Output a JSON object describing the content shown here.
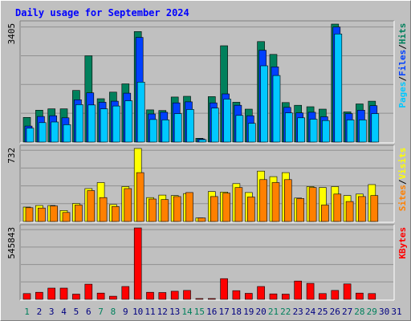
{
  "title": "Daily usage for September 2024",
  "colors": {
    "title": "#0000ff",
    "hits": "#00805c",
    "files": "#0040ff",
    "pages": "#00c8ff",
    "visits": "#ffff00",
    "sites": "#ff8000",
    "kbytes": "#ff0000",
    "weekend_day": "#00805c",
    "weekday": "#000080",
    "panel_bg": "#c0c0c0"
  },
  "chart_data": [
    {
      "type": "bar",
      "title": "Daily usage for September 2024",
      "categories": [
        "1",
        "2",
        "3",
        "4",
        "5",
        "6",
        "7",
        "8",
        "9",
        "10",
        "11",
        "12",
        "13",
        "14",
        "15",
        "16",
        "17",
        "18",
        "19",
        "20",
        "21",
        "22",
        "23",
        "24",
        "25",
        "26",
        "27",
        "28",
        "29",
        "30",
        "31"
      ],
      "weekend_days": [
        "1",
        "7",
        "8",
        "14",
        "15",
        "21",
        "22",
        "28",
        "29"
      ],
      "ylabel_parts": [
        "Pages",
        "/",
        "Files",
        "/",
        "Hits"
      ],
      "max_label": "3405",
      "ylim": [
        0,
        3405
      ],
      "series": [
        {
          "name": "Hits",
          "color": "#00805c",
          "values": [
            710,
            920,
            960,
            960,
            1490,
            2490,
            1250,
            1440,
            1680,
            3190,
            930,
            910,
            1300,
            1320,
            110,
            1310,
            2780,
            1150,
            950,
            2900,
            2530,
            1140,
            1060,
            1020,
            950,
            3405,
            870,
            1100,
            1180,
            0,
            0
          ]
        },
        {
          "name": "Files",
          "color": "#0040ff",
          "values": [
            460,
            740,
            760,
            700,
            1220,
            1420,
            1150,
            1180,
            1410,
            3020,
            810,
            860,
            1130,
            1160,
            90,
            1130,
            1390,
            1060,
            760,
            2650,
            2170,
            1000,
            840,
            860,
            730,
            3320,
            820,
            920,
            1050,
            0,
            0
          ]
        },
        {
          "name": "Pages",
          "color": "#00c8ff",
          "values": [
            400,
            560,
            580,
            500,
            1080,
            1070,
            960,
            1040,
            1190,
            1730,
            650,
            640,
            820,
            940,
            70,
            980,
            1240,
            770,
            540,
            2200,
            1920,
            840,
            700,
            660,
            620,
            3120,
            640,
            640,
            820,
            0,
            0
          ]
        }
      ]
    },
    {
      "type": "bar",
      "ylabel_parts": [
        "Sites",
        "/",
        "Visits"
      ],
      "max_label": "732",
      "ylim": [
        0,
        732
      ],
      "series": [
        {
          "name": "Visits",
          "color": "#ffff00",
          "values": [
            145,
            160,
            160,
            110,
            180,
            330,
            390,
            170,
            350,
            732,
            240,
            265,
            260,
            280,
            35,
            300,
            295,
            380,
            290,
            505,
            450,
            490,
            235,
            350,
            340,
            350,
            260,
            275,
            370,
            0,
            0
          ]
        },
        {
          "name": "Sites",
          "color": "#ff8000",
          "values": [
            138,
            135,
            155,
            90,
            165,
            310,
            240,
            150,
            330,
            490,
            225,
            220,
            250,
            290,
            35,
            250,
            285,
            340,
            245,
            420,
            390,
            420,
            230,
            340,
            165,
            275,
            200,
            250,
            260,
            0,
            0
          ]
        }
      ]
    },
    {
      "type": "bar",
      "ylabel_parts": [
        "KBytes"
      ],
      "max_label": "545843",
      "ylim": [
        0,
        545843
      ],
      "series": [
        {
          "name": "KBytes",
          "color": "#ff0000",
          "values": [
            44000,
            54000,
            86000,
            86000,
            40000,
            116000,
            48000,
            24000,
            98000,
            545843,
            54000,
            52000,
            62000,
            68000,
            5000,
            5000,
            158000,
            66000,
            46000,
            98000,
            42000,
            40000,
            140000,
            122000,
            44000,
            68000,
            118000,
            48000,
            44000,
            0,
            0
          ]
        }
      ]
    }
  ]
}
